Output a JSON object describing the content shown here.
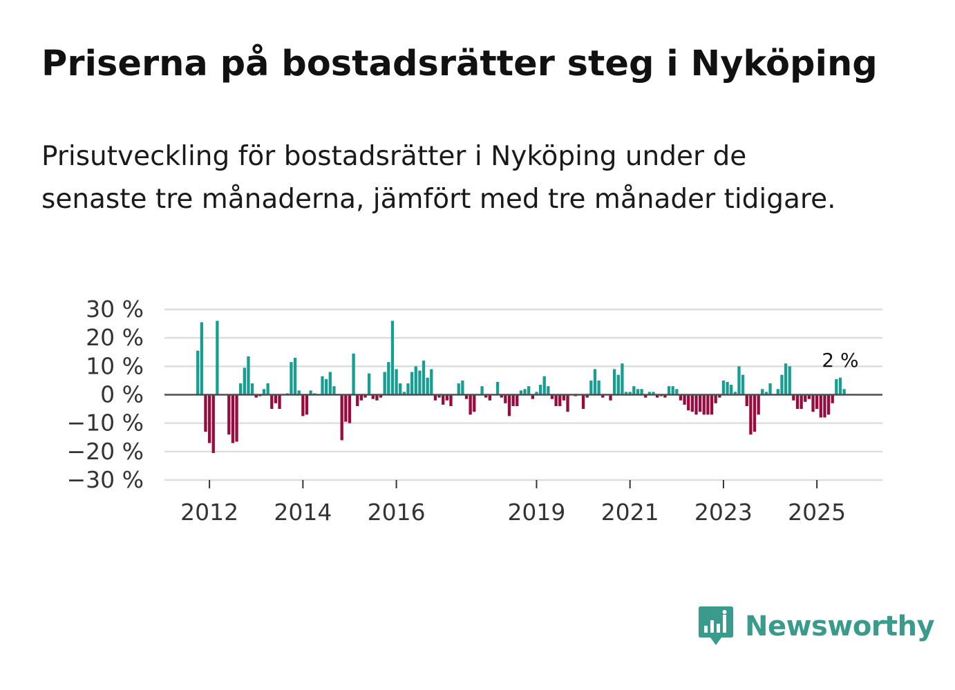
{
  "title": "Priserna på bostadsrätter steg i Nyköping",
  "subtitle": "Prisutveckling för bostadsrätter i Nyköping under de senaste tre månaderna, jämfört med tre månader tidigare.",
  "brand": {
    "name": "Newsworthy",
    "icon": "newsworthy-logo-icon"
  },
  "colors": {
    "positive": "#159f93",
    "negative": "#9a0a3e",
    "zero_line": "#4d4d4d",
    "grid": "#dddddd",
    "brand": "#3a9a8c"
  },
  "chart_data": {
    "type": "bar",
    "title": "Priserna på bostadsrätter steg i Nyköping",
    "xlabel": "",
    "ylabel": "",
    "ylim": [
      -30,
      30
    ],
    "yticks": [
      30,
      20,
      10,
      0,
      -10,
      -20,
      -30
    ],
    "ytick_labels": [
      "30 %",
      "20 %",
      "10 %",
      "0 %",
      "−10 %",
      "−20 %",
      "−30 %"
    ],
    "xtick_labels": [
      "2012",
      "2014",
      "2016",
      "2019",
      "2021",
      "2023",
      "2025"
    ],
    "xtick_index": [
      3,
      27,
      51,
      87,
      111,
      135,
      159
    ],
    "grid": true,
    "last_value_label": "2 %",
    "x_start": "2011-12",
    "frequency": "monthly",
    "values": [
      15.5,
      25.5,
      -13,
      -17,
      -20.5,
      26,
      0,
      0,
      -14,
      -17,
      -16.5,
      4,
      9.5,
      13.5,
      4,
      -1,
      -0.5,
      2,
      4,
      -5,
      -3,
      -5,
      0,
      0.5,
      11.5,
      13,
      1.5,
      -7.5,
      -7,
      1.5,
      0.5,
      0,
      6.5,
      5.5,
      8,
      3,
      0,
      -16,
      -9.5,
      -10,
      14.5,
      -4,
      -2,
      -1,
      7.5,
      -1.5,
      -2,
      -1,
      8,
      11.5,
      26,
      9,
      4,
      1,
      4,
      8,
      10,
      8.5,
      12,
      6,
      9,
      -2,
      -1,
      -3.5,
      -2,
      -4,
      0,
      4,
      5,
      -1.5,
      -7,
      -6,
      0,
      3,
      -1,
      -2,
      0,
      4.5,
      -1,
      -3,
      -7.5,
      -4,
      -4,
      1.5,
      2,
      3,
      -1.5,
      1,
      3.5,
      6.5,
      3,
      -1.5,
      -4,
      -4,
      -2,
      -6,
      0,
      -0.5,
      0,
      -5,
      -1,
      5,
      9,
      5,
      -1,
      0,
      -2,
      9,
      7,
      11,
      1,
      1,
      3,
      2,
      2,
      -1,
      1,
      1,
      -1,
      -0.5,
      -1,
      3,
      3,
      2,
      -2,
      -3.5,
      -5.5,
      -6,
      -7,
      -6,
      -7,
      -7,
      -7,
      -3,
      -1,
      5,
      4.5,
      3.5,
      1,
      10,
      7,
      -4,
      -14,
      -13,
      -7,
      2,
      1,
      4,
      0,
      2,
      7,
      11,
      10,
      -2,
      -5,
      -5,
      -2.5,
      -1.5,
      -6,
      -5,
      -8,
      -8,
      -7,
      -3,
      5.5,
      6,
      2
    ]
  }
}
